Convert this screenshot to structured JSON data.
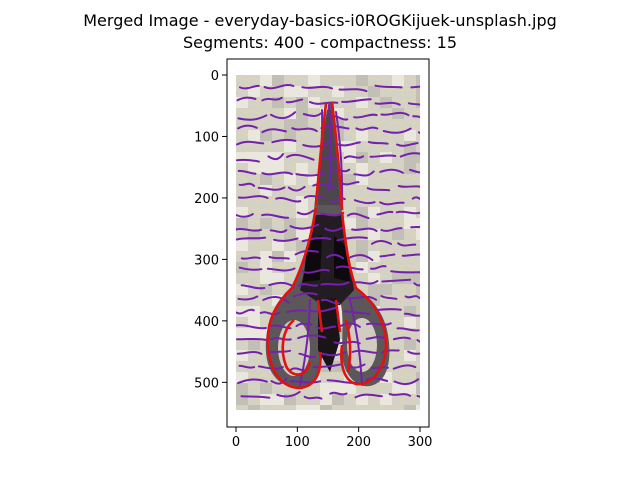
{
  "figure": {
    "title_line1": "Merged Image - everyday-basics-i0ROGKijuek-unsplash.jpg",
    "title_line2": "Segments: 400 - compactness: 15"
  },
  "axes": {
    "x_ticks": [
      0,
      100,
      200,
      300
    ],
    "y_ticks": [
      0,
      100,
      200,
      300,
      400,
      500
    ],
    "x_range": [
      -15,
      315
    ],
    "y_range": [
      -25,
      578
    ],
    "y_inverted": true
  },
  "image": {
    "width": 300,
    "height": 545,
    "subject": "scissors",
    "colors": {
      "background": "#d2cfc3",
      "boundary_fine": "#dcd28a",
      "boundary_merged": "#7a22b0",
      "outline": "#e01010",
      "handle_dark": "#3a3438",
      "handle_black": "#0e0a0e",
      "blade_gray": "#5e5a5c"
    }
  }
}
